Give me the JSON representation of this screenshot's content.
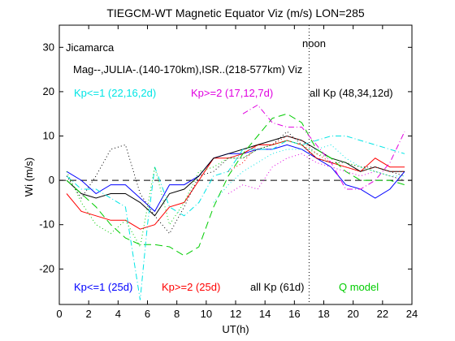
{
  "chart_data": {
    "type": "line",
    "title": "TIEGCM-WT Magnetic Equator Viz (m/s) LON=285",
    "xlabel": "UT(h)",
    "ylabel": "Wi (m/s)",
    "xlim": [
      0,
      24
    ],
    "ylim": [
      -28,
      35
    ],
    "xticks": [
      0,
      2,
      4,
      6,
      8,
      10,
      12,
      14,
      16,
      18,
      20,
      22,
      24
    ],
    "yticks": [
      -20,
      -10,
      0,
      10,
      20,
      30
    ],
    "grid": false,
    "noon_line_x": 17,
    "zero_line_y": 0,
    "annotations": {
      "station": "Jicamarca",
      "description": "Mag--,JULIA-.(140-170km),ISR..(218-577km) Viz",
      "noon": "noon",
      "top_legend": [
        {
          "text": "Kp<=1 (22,16,2d)",
          "color": "#00e5e5"
        },
        {
          "text": "Kp>=2 (17,12,7d)",
          "color": "#e000e0"
        },
        {
          "text": "all Kp (48,34,12d)",
          "color": "#000000"
        }
      ],
      "bottom_legend": [
        {
          "text": "Kp<=1 (25d)",
          "color": "#0000ff"
        },
        {
          "text": "Kp>=2 (25d)",
          "color": "#ff0000"
        },
        {
          "text": "all Kp (61d)",
          "color": "#000000"
        },
        {
          "text": "Q model",
          "color": "#00cc00"
        }
      ]
    },
    "series": [
      {
        "color": "#0000ff",
        "style": "solid",
        "x": [
          0.5,
          1.5,
          2.5,
          3.5,
          4.5,
          5.5,
          6.5,
          7.5,
          8.5,
          9.5,
          10.5,
          11.5,
          12.5,
          13.5,
          14.5,
          15.5,
          16.5,
          17.5,
          18.5,
          19.5,
          20.5,
          21.5,
          22.5,
          23.5
        ],
        "y": [
          2,
          0,
          -3,
          -1,
          -1,
          -4,
          -7,
          -1,
          -1,
          1,
          5,
          6,
          6,
          7,
          7,
          8,
          7,
          5,
          3,
          -1,
          -2,
          -4,
          -2,
          2
        ]
      },
      {
        "color": "#ff0000",
        "style": "solid",
        "x": [
          0.5,
          1.5,
          2.5,
          3.5,
          4.5,
          5.5,
          6.5,
          7.5,
          8.5,
          9.5,
          10.5,
          11.5,
          12.5,
          13.5,
          14.5,
          15.5,
          16.5,
          17.5,
          18.5,
          19.5,
          20.5,
          21.5,
          22.5,
          23.5
        ],
        "y": [
          -3,
          -7,
          -8,
          -9,
          -9,
          -11,
          -10,
          -6,
          -5,
          0,
          5,
          5,
          6,
          8,
          8,
          9,
          8,
          5,
          4,
          3,
          2,
          5,
          3,
          3
        ]
      },
      {
        "color": "#000000",
        "style": "solid",
        "x": [
          0.5,
          1.5,
          2.5,
          3.5,
          4.5,
          5.5,
          6.5,
          7.5,
          8.5,
          9.5,
          10.5,
          11.5,
          12.5,
          13.5,
          14.5,
          15.5,
          16.5,
          17.5,
          18.5,
          19.5,
          20.5,
          21.5,
          22.5,
          23.5
        ],
        "y": [
          0,
          -3,
          -4,
          -3,
          -3,
          -5,
          -8,
          -3,
          -2,
          1,
          5,
          6,
          7,
          8,
          9,
          10,
          9,
          7,
          5,
          4,
          2,
          3,
          2,
          2
        ]
      },
      {
        "color": "#00cc00",
        "style": "dashed",
        "x": [
          0.5,
          1.5,
          2.5,
          3.5,
          4.5,
          5.5,
          6.5,
          7.5,
          8.5,
          9.5,
          10.5,
          11.5,
          12.5,
          13.5,
          14.5,
          15.5,
          16.5,
          17.5,
          18.5,
          19.5,
          20.5,
          21.5,
          22.5,
          23.5
        ],
        "y": [
          0,
          -3,
          -6,
          -10,
          -13,
          -14.5,
          -14.5,
          -15,
          -17,
          -15,
          -6,
          1,
          6,
          10,
          14,
          15,
          13,
          7,
          5,
          2,
          0,
          0,
          0,
          -1
        ]
      },
      {
        "color": "#00e5e5",
        "style": "dashdot",
        "x": [
          0.5,
          1.5,
          2.5,
          3.5,
          4.5,
          5.5,
          6,
          6.5,
          7.5,
          8.5,
          9.5,
          10.5,
          11.5,
          12.5,
          13.5,
          14.5,
          15.5,
          16.5,
          17.5,
          18.5,
          19.5,
          20.5,
          21.5,
          22.5,
          23.5
        ],
        "y": [
          1,
          -2,
          -2,
          -4,
          -6,
          -27,
          -10,
          3,
          -6,
          -8,
          -5,
          1,
          2,
          7,
          7,
          7,
          9,
          8,
          9,
          10,
          10,
          9,
          8,
          7,
          6
        ]
      },
      {
        "color": "#e000e0",
        "style": "dashdot",
        "x": [
          12.5,
          13.5,
          14.5,
          15.5,
          16.5,
          17.5,
          18.5,
          19.5,
          20.5,
          21.5,
          22.5,
          23.5
        ],
        "y": [
          15,
          17,
          13,
          12,
          12,
          8,
          4,
          -2,
          -2,
          0,
          4,
          11
        ]
      },
      {
        "color": "#000000",
        "style": "dotted",
        "x": [
          0.5,
          1.5,
          2.5,
          3.5,
          4.5,
          5.5,
          6.5,
          7.5,
          8.5,
          9.5,
          10.5,
          11.5,
          12.5,
          13.5,
          14.5,
          15.5,
          16.5,
          17.5,
          18.5,
          19.5,
          20.5,
          21.5,
          22.5,
          23.5
        ],
        "y": [
          1,
          -4,
          1,
          7,
          8,
          -3,
          -8,
          -12,
          -6,
          1,
          2,
          5,
          5,
          7,
          8,
          11,
          8,
          5,
          4,
          4,
          3,
          3,
          2,
          1
        ]
      },
      {
        "color": "#00cc00",
        "style": "dotted",
        "x": [
          0.5,
          1.5,
          2.5,
          3.5,
          4.5,
          5.5,
          6.5,
          7.5,
          8.5,
          9.5,
          10.5,
          11.5,
          12.5,
          13.5,
          14.5,
          15.5,
          16.5,
          17.5,
          18.5,
          19.5,
          20.5,
          21.5,
          22.5,
          23.5
        ],
        "y": [
          2,
          -5,
          -10,
          -12,
          -9,
          -15,
          3,
          -10,
          -5,
          2,
          3,
          5,
          5,
          7,
          8,
          9,
          8,
          6,
          5,
          4,
          3,
          2,
          1,
          0
        ]
      },
      {
        "color": "#ff0000",
        "style": "dotted",
        "x": [
          11.5,
          12.5,
          13.5,
          14.5,
          15.5,
          16.5,
          17.5,
          18.5,
          19.5,
          20.5,
          21.5,
          22.5,
          23.5
        ],
        "y": [
          2,
          4,
          8,
          8,
          10,
          9,
          6,
          4,
          3,
          2,
          3,
          2,
          2
        ]
      },
      {
        "color": "#e000e0",
        "style": "dotted",
        "x": [
          11.5,
          12.5,
          13.5,
          14.5,
          15.5,
          16.5,
          17.5,
          18.5,
          19.5,
          20.5,
          21.5,
          22.5,
          23.5
        ],
        "y": [
          -3,
          -1,
          -2,
          3,
          5,
          6,
          4,
          3,
          2,
          1,
          2,
          1,
          0
        ]
      },
      {
        "color": "#00e5e5",
        "style": "dotted",
        "x": [
          10.5,
          11.5,
          12.5,
          13.5,
          14.5,
          15.5,
          16.5,
          17.5,
          18.5,
          19.5,
          20.5,
          21.5,
          22.5,
          23.5
        ],
        "y": [
          -5,
          -1,
          2,
          4,
          6,
          7,
          7,
          7,
          8,
          5,
          3,
          2,
          1,
          1
        ]
      }
    ]
  }
}
